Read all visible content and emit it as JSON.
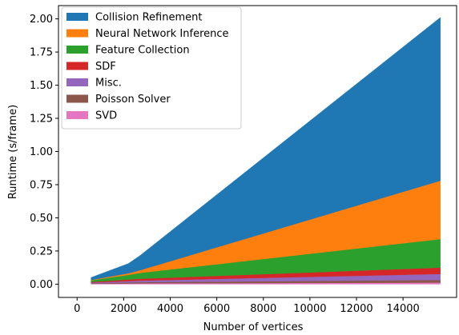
{
  "chart_data": {
    "type": "area",
    "stacked": true,
    "xlabel": "Number of vertices",
    "ylabel": "Runtime (s/frame)",
    "xlim": [
      -800,
      16300
    ],
    "ylim": [
      -0.1,
      2.1
    ],
    "xticks": [
      0,
      2000,
      4000,
      6000,
      8000,
      10000,
      12000,
      14000
    ],
    "yticks": [
      0.0,
      0.25,
      0.5,
      0.75,
      1.0,
      1.25,
      1.5,
      1.75,
      2.0
    ],
    "xtick_labels": [
      "0",
      "2000",
      "4000",
      "6000",
      "8000",
      "10000",
      "12000",
      "14000"
    ],
    "ytick_labels": [
      "0.00",
      "0.25",
      "0.50",
      "0.75",
      "1.00",
      "1.25",
      "1.50",
      "1.75",
      "2.00"
    ],
    "legend_position": "top-left",
    "grid": false,
    "x": [
      600,
      2200,
      2700,
      15600
    ],
    "series": [
      {
        "name": "SVD",
        "color": "#e377c2",
        "values": [
          0.003,
          0.005,
          0.006,
          0.012
        ]
      },
      {
        "name": "Poisson Solver",
        "color": "#8c564b",
        "values": [
          0.004,
          0.008,
          0.009,
          0.02
        ]
      },
      {
        "name": "Misc.",
        "color": "#9467bd",
        "values": [
          0.005,
          0.01,
          0.012,
          0.045
        ]
      },
      {
        "name": "SDF",
        "color": "#d62728",
        "values": [
          0.005,
          0.012,
          0.014,
          0.048
        ]
      },
      {
        "name": "Feature Collection",
        "color": "#2ca02c",
        "values": [
          0.012,
          0.035,
          0.044,
          0.215
        ]
      },
      {
        "name": "Neural Network Inference",
        "color": "#ff7f0e",
        "values": [
          0.003,
          0.012,
          0.02,
          0.44
        ]
      },
      {
        "name": "Collision Refinement",
        "color": "#1f77b4",
        "values": [
          0.018,
          0.073,
          0.11,
          1.23
        ]
      }
    ],
    "legend_order": [
      "Collision Refinement",
      "Neural Network Inference",
      "Feature Collection",
      "SDF",
      "Misc.",
      "Poisson Solver",
      "SVD"
    ]
  }
}
